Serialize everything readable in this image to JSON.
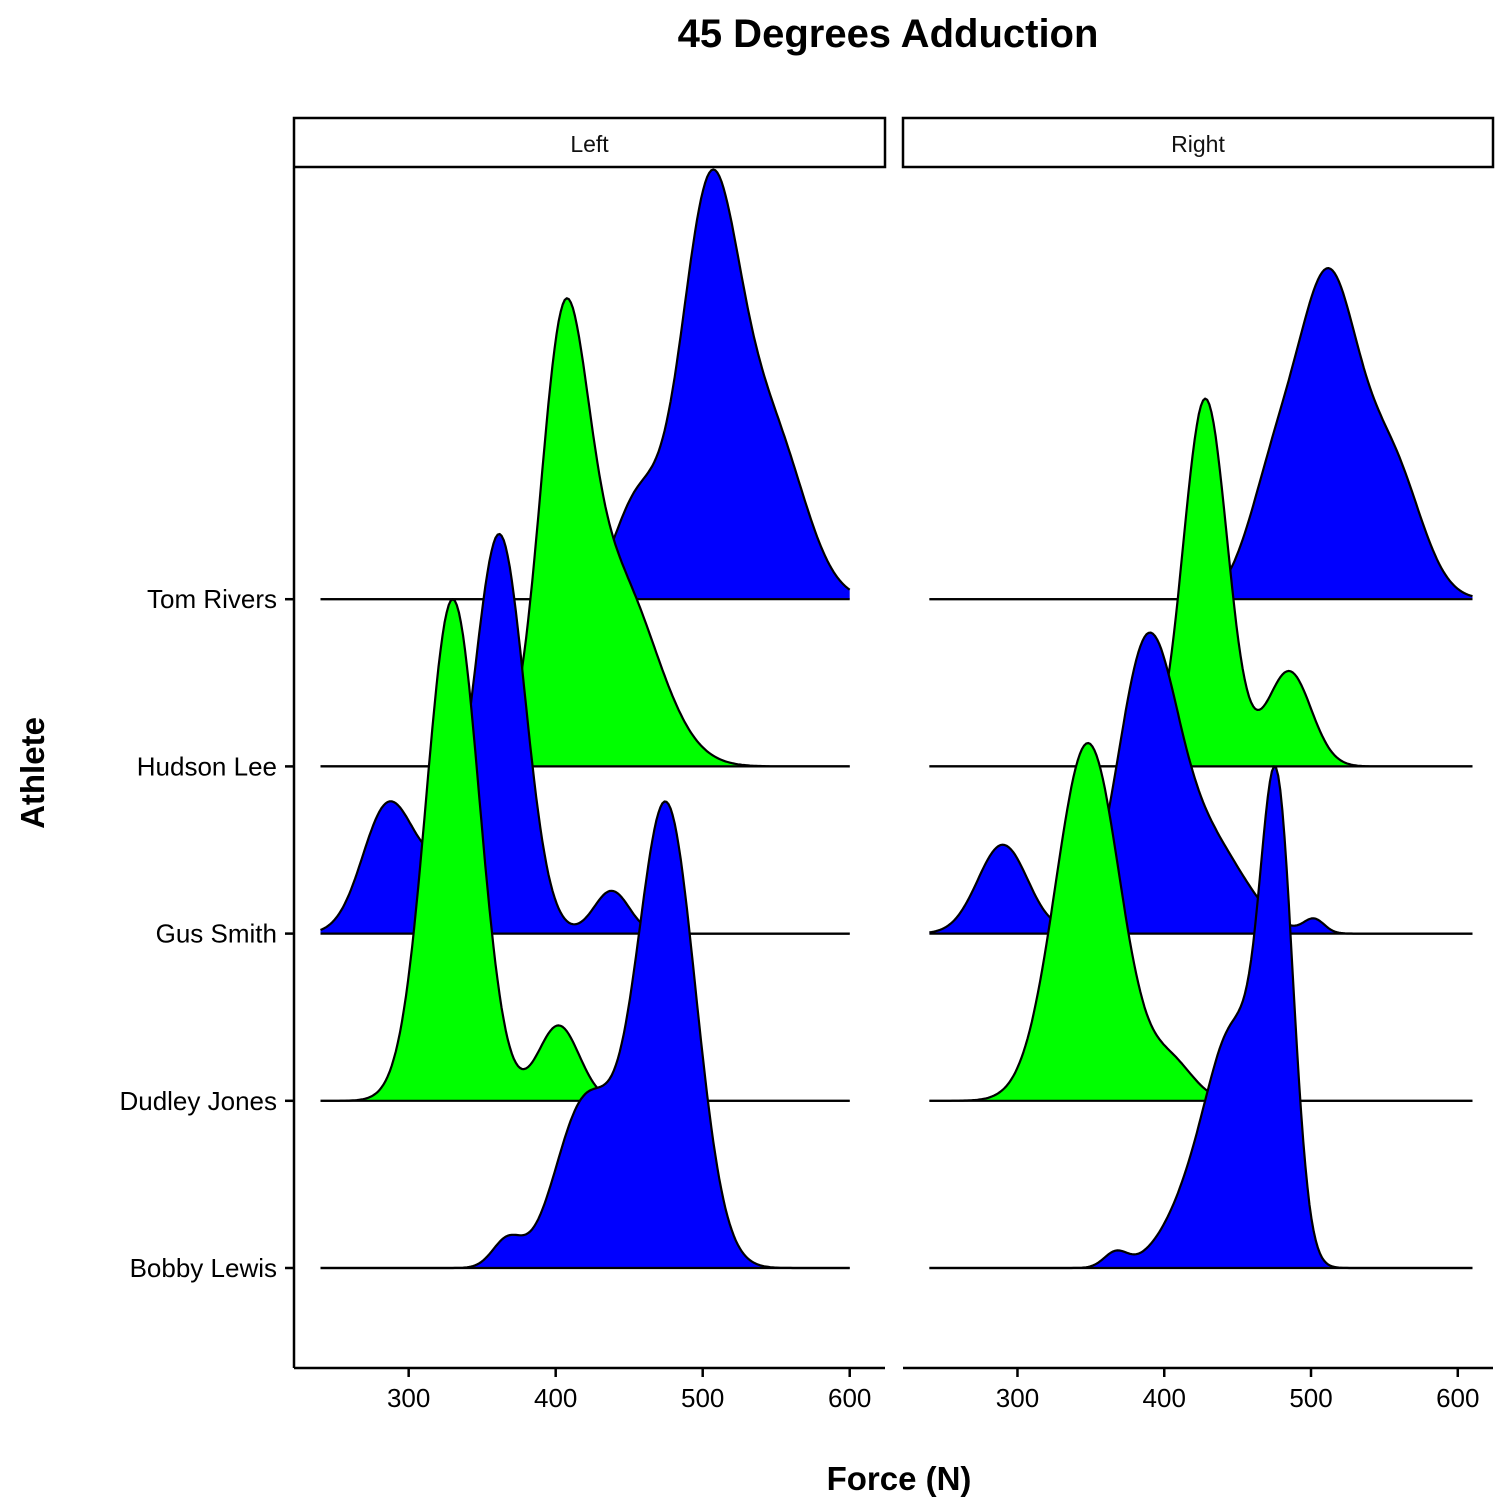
{
  "chart_data": {
    "type": "ridgeline",
    "title": "45 Degrees Adduction",
    "xlabel": "Force (N)",
    "ylabel": "Athlete",
    "xlim": [
      222,
      624
    ],
    "x_ticks": [
      300,
      400,
      500,
      600
    ],
    "athletes": [
      "Bobby Lewis",
      "Dudley Jones",
      "Gus Smith",
      "Hudson Lee",
      "Tom Rivers"
    ],
    "colors": {
      "blue": "#0000FF",
      "green": "#00FF00",
      "outline": "#000000"
    },
    "grid": false,
    "legend": "none",
    "panels": [
      {
        "label": "Left",
        "x_range": [
          240,
          600
        ],
        "ridges": [
          {
            "athlete": "Tom Rivers",
            "color": "blue",
            "max_height_rows": 2.57,
            "components": [
              [
                505,
                20,
                0.78
              ],
              [
                455,
                16,
                0.18
              ],
              [
                548,
                22,
                0.3
              ]
            ]
          },
          {
            "athlete": "Hudson Lee",
            "color": "green",
            "max_height_rows": 2.8,
            "components": [
              [
                405,
                16,
                0.75
              ],
              [
                440,
                28,
                0.38
              ]
            ]
          },
          {
            "athlete": "Gus Smith",
            "color": "blue",
            "max_height_rows": 2.39,
            "components": [
              [
                362,
                17,
                0.92
              ],
              [
                285,
                17,
                0.28
              ],
              [
                438,
                12,
                0.1
              ],
              [
                320,
                20,
                0.12
              ]
            ]
          },
          {
            "athlete": "Dudley Jones",
            "color": "green",
            "max_height_rows": 3.0,
            "components": [
              [
                330,
                18,
                1.0
              ],
              [
                402,
                14,
                0.15
              ]
            ]
          },
          {
            "athlete": "Bobby Lewis",
            "color": "blue",
            "max_height_rows": 2.79,
            "components": [
              [
                475,
                20,
                0.85
              ],
              [
                420,
                20,
                0.3
              ],
              [
                367,
                10,
                0.05
              ]
            ]
          }
        ]
      },
      {
        "label": "Right",
        "x_range": [
          240,
          610
        ],
        "ridges": [
          {
            "athlete": "Tom Rivers",
            "color": "blue",
            "max_height_rows": 1.98,
            "components": [
              [
                512,
                20,
                0.75
              ],
              [
                475,
                18,
                0.28
              ],
              [
                555,
                20,
                0.32
              ]
            ]
          },
          {
            "athlete": "Hudson Lee",
            "color": "green",
            "max_height_rows": 2.2,
            "components": [
              [
                428,
                15,
                0.85
              ],
              [
                485,
                15,
                0.22
              ]
            ]
          },
          {
            "athlete": "Gus Smith",
            "color": "blue",
            "max_height_rows": 1.8,
            "components": [
              [
                388,
                20,
                1.0
              ],
              [
                290,
                17,
                0.32
              ],
              [
                430,
                25,
                0.32
              ],
              [
                502,
                7,
                0.05
              ]
            ]
          },
          {
            "athlete": "Dudley Jones",
            "color": "green",
            "max_height_rows": 2.14,
            "components": [
              [
                348,
                22,
                1.0
              ],
              [
                405,
                15,
                0.1
              ]
            ]
          },
          {
            "athlete": "Bobby Lewis",
            "color": "blue",
            "max_height_rows": 3.0,
            "components": [
              [
                477,
                11,
                1.0
              ],
              [
                450,
                18,
                0.45
              ],
              [
                425,
                22,
                0.18
              ],
              [
                367,
                8,
                0.035
              ]
            ]
          }
        ]
      }
    ]
  }
}
